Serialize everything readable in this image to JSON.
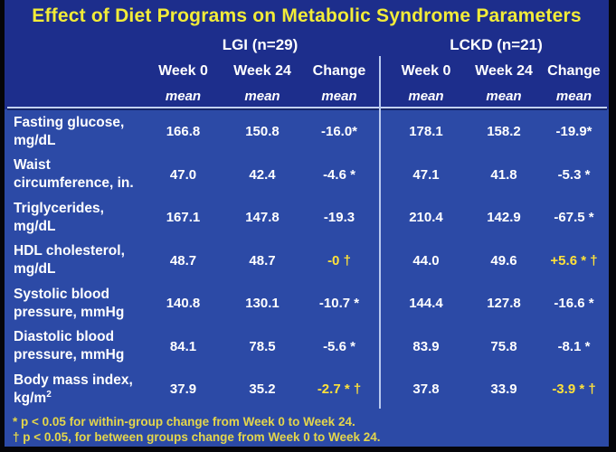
{
  "slide": {
    "title": "Effect of Diet Programs on Metabolic Syndrome Parameters",
    "groups": [
      {
        "label": "LGI (n=29)"
      },
      {
        "label": "LCKD (n=21)"
      }
    ],
    "column_headers": [
      "Week 0",
      "Week 24",
      "Change"
    ],
    "stat_label": "mean",
    "rows": [
      {
        "lines": [
          "Fasting glucose,",
          "mg/dL"
        ],
        "sup": "",
        "values": [
          "166.8",
          "150.8",
          "-16.0*",
          "178.1",
          "158.2",
          "-19.9*"
        ],
        "highlight": [
          false,
          false,
          false,
          false,
          false,
          false
        ]
      },
      {
        "lines": [
          "Waist",
          "circumference, in."
        ],
        "sup": "",
        "values": [
          "47.0",
          "42.4",
          "-4.6 *",
          "47.1",
          "41.8",
          "-5.3 *"
        ],
        "highlight": [
          false,
          false,
          false,
          false,
          false,
          false
        ]
      },
      {
        "lines": [
          "Triglycerides,",
          "mg/dL"
        ],
        "sup": "",
        "values": [
          "167.1",
          "147.8",
          "-19.3",
          "210.4",
          "142.9",
          "-67.5 *"
        ],
        "highlight": [
          false,
          false,
          false,
          false,
          false,
          false
        ]
      },
      {
        "lines": [
          "HDL cholesterol,",
          "mg/dL"
        ],
        "sup": "",
        "values": [
          "48.7",
          "48.7",
          "-0 †",
          "44.0",
          "49.6",
          "+5.6 * †"
        ],
        "highlight": [
          false,
          false,
          true,
          false,
          false,
          true
        ]
      },
      {
        "lines": [
          "Systolic blood",
          "pressure, mmHg"
        ],
        "sup": "",
        "values": [
          "140.8",
          "130.1",
          "-10.7 *",
          "144.4",
          "127.8",
          "-16.6 *"
        ],
        "highlight": [
          false,
          false,
          false,
          false,
          false,
          false
        ]
      },
      {
        "lines": [
          "Diastolic blood",
          "pressure, mmHg"
        ],
        "sup": "",
        "values": [
          "84.1",
          "78.5",
          "-5.6 *",
          "83.9",
          "75.8",
          "-8.1 *"
        ],
        "highlight": [
          false,
          false,
          false,
          false,
          false,
          false
        ]
      },
      {
        "lines": [
          "Body mass index,",
          "kg/m"
        ],
        "sup": "2",
        "values": [
          "37.9",
          "35.2",
          "-2.7 * †",
          "37.8",
          "33.9",
          "-3.9 * †"
        ],
        "highlight": [
          false,
          false,
          true,
          false,
          false,
          true
        ]
      }
    ],
    "footnotes": [
      "* p < 0.05 for within-group change from Week 0 to Week 24.",
      "† p < 0.05, for between groups change from Week 0 to Week 24."
    ]
  },
  "colors": {
    "background_top": "#1d2e8c",
    "background_table": "#2c4aa6",
    "edge_black": "#050509",
    "title_yellow": "#f2ec38",
    "highlight_yellow": "#ffe23a",
    "footnote_yellow": "#e4d64b",
    "text_white": "#ffffff",
    "rule_light_blue": "#c3d2f5"
  },
  "chart_data": {
    "type": "table",
    "title": "Effect of Diet Programs on Metabolic Syndrome Parameters",
    "column_groups": [
      "LGI (n=29)",
      "LCKD (n=21)"
    ],
    "columns": [
      "Week 0 mean",
      "Week 24 mean",
      "Change mean"
    ],
    "rows": [
      {
        "parameter": "Fasting glucose, mg/dL",
        "LGI": [
          166.8,
          150.8,
          -16.0
        ],
        "LCKD": [
          178.1,
          158.2,
          -19.9
        ],
        "markers": {
          "LGI_change": "*",
          "LCKD_change": "*"
        }
      },
      {
        "parameter": "Waist circumference, in.",
        "LGI": [
          47.0,
          42.4,
          -4.6
        ],
        "LCKD": [
          47.1,
          41.8,
          -5.3
        ],
        "markers": {
          "LGI_change": "*",
          "LCKD_change": "*"
        }
      },
      {
        "parameter": "Triglycerides, mg/dL",
        "LGI": [
          167.1,
          147.8,
          -19.3
        ],
        "LCKD": [
          210.4,
          142.9,
          -67.5
        ],
        "markers": {
          "LGI_change": "",
          "LCKD_change": "*"
        }
      },
      {
        "parameter": "HDL cholesterol, mg/dL",
        "LGI": [
          48.7,
          48.7,
          -0.0
        ],
        "LCKD": [
          44.0,
          49.6,
          5.6
        ],
        "markers": {
          "LGI_change": "†",
          "LCKD_change": "* †"
        }
      },
      {
        "parameter": "Systolic blood pressure, mmHg",
        "LGI": [
          140.8,
          130.1,
          -10.7
        ],
        "LCKD": [
          144.4,
          127.8,
          -16.6
        ],
        "markers": {
          "LGI_change": "*",
          "LCKD_change": "*"
        }
      },
      {
        "parameter": "Diastolic blood pressure, mmHg",
        "LGI": [
          84.1,
          78.5,
          -5.6
        ],
        "LCKD": [
          83.9,
          75.8,
          -8.1
        ],
        "markers": {
          "LGI_change": "*",
          "LCKD_change": "*"
        }
      },
      {
        "parameter": "Body mass index, kg/m2",
        "LGI": [
          37.9,
          35.2,
          -2.7
        ],
        "LCKD": [
          37.8,
          33.9,
          -3.9
        ],
        "markers": {
          "LGI_change": "* †",
          "LCKD_change": "* †"
        }
      }
    ],
    "footnotes": [
      "* p < 0.05 for within-group change from Week 0 to Week 24.",
      "† p < 0.05, for between groups change from Week 0 to Week 24."
    ]
  }
}
